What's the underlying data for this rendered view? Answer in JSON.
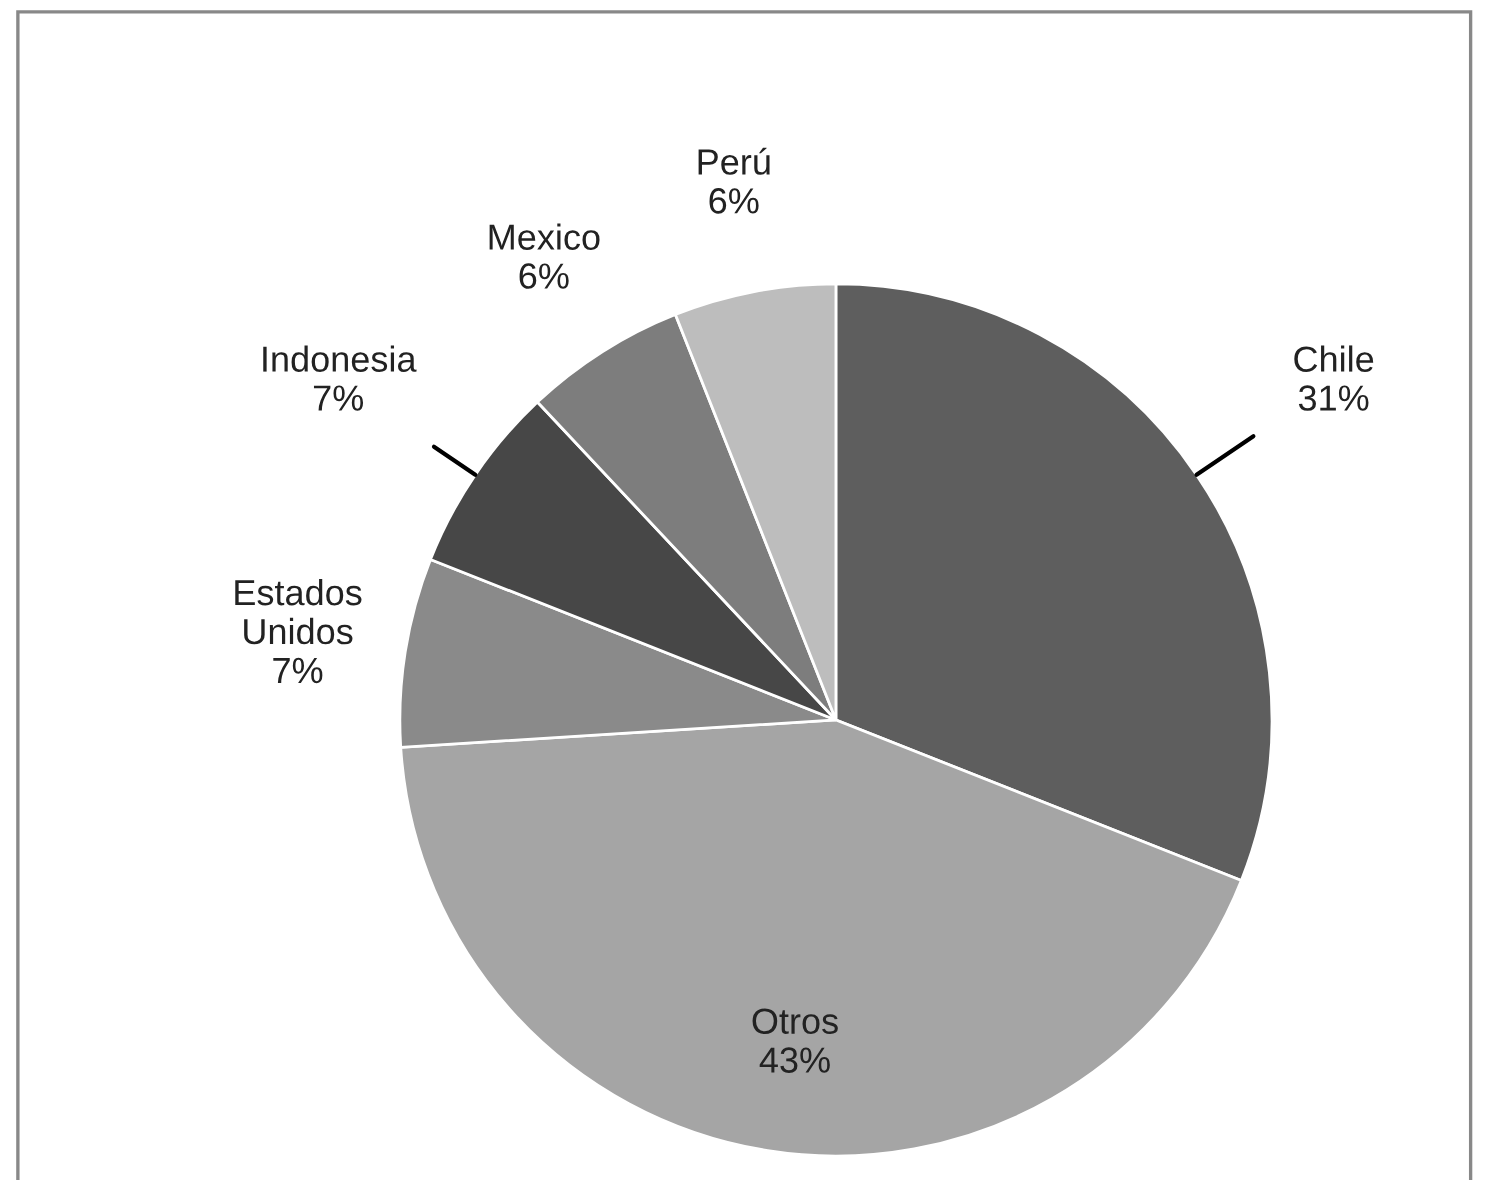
{
  "chart_data": {
    "type": "pie",
    "categories": [
      "Chile",
      "Otros",
      "Estados Unidos",
      "Indonesia",
      "Mexico",
      "Perú"
    ],
    "values": [
      31,
      43,
      7,
      7,
      6,
      6
    ],
    "colors": [
      "#5e5e5e",
      "#a5a5a5",
      "#8a8a8a",
      "#474747",
      "#7d7d7d",
      "#bdbdbd"
    ],
    "value_labels": [
      "31%",
      "43%",
      "7%",
      "7%",
      "6%",
      "6%"
    ]
  }
}
